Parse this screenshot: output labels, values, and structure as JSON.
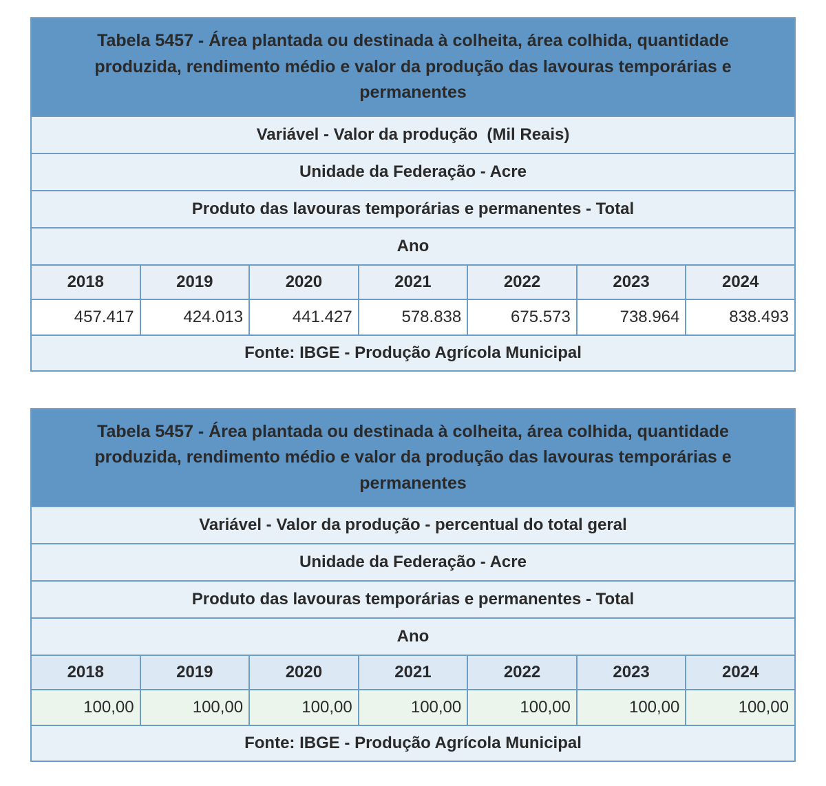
{
  "colors": {
    "title_bg": "#5f96c6",
    "title_text": "#ffffff",
    "band_bg": "#e9f1f8",
    "border": "#6d9cc4",
    "year_bg_table1": "#e8eff6",
    "year_bg_table2": "#dce8f4",
    "value_bg_table1": "#ffffff",
    "value_bg_table2": "#ebf5ec",
    "body_text": "#2a2a2a"
  },
  "tables": [
    {
      "title": "Tabela 5457 - Área plantada ou destinada à colheita, área colhida, quantidade produzida, rendimento médio e valor da produção das lavouras temporárias e permanentes",
      "variable": "Variável - Valor da produção  (Mil Reais)",
      "federation_unit": "Unidade da Federação - Acre",
      "product": "Produto das lavouras temporárias e permanentes - Total",
      "year_label": "Ano",
      "years": [
        "2018",
        "2019",
        "2020",
        "2021",
        "2022",
        "2023",
        "2024"
      ],
      "values": [
        "457.417",
        "424.013",
        "441.427",
        "578.838",
        "675.573",
        "738.964",
        "838.493"
      ],
      "source": "Fonte: IBGE - Produção Agrícola Municipal"
    },
    {
      "title": "Tabela 5457 - Área plantada ou destinada à colheita, área colhida, quantidade produzida, rendimento médio e valor da produção das lavouras temporárias e permanentes",
      "variable": "Variável - Valor da produção - percentual do total geral",
      "federation_unit": "Unidade da Federação - Acre",
      "product": "Produto das lavouras temporárias e permanentes - Total",
      "year_label": "Ano",
      "years": [
        "2018",
        "2019",
        "2020",
        "2021",
        "2022",
        "2023",
        "2024"
      ],
      "values": [
        "100,00",
        "100,00",
        "100,00",
        "100,00",
        "100,00",
        "100,00",
        "100,00"
      ],
      "source": "Fonte: IBGE - Produção Agrícola Municipal"
    }
  ],
  "chart_data": [
    {
      "type": "table",
      "title": "Tabela 5457 - Área plantada ou destinada à colheita, área colhida, quantidade produzida, rendimento médio e valor da produção das lavouras temporárias e permanentes",
      "variable": "Valor da produção (Mil Reais)",
      "federation_unit": "Acre",
      "product": "Produto das lavouras temporárias e permanentes - Total",
      "categories": [
        "2018",
        "2019",
        "2020",
        "2021",
        "2022",
        "2023",
        "2024"
      ],
      "values": [
        457417,
        424013,
        441427,
        578838,
        675573,
        738964,
        838493
      ],
      "source": "Fonte: IBGE - Produção Agrícola Municipal"
    },
    {
      "type": "table",
      "title": "Tabela 5457 - Área plantada ou destinada à colheita, área colhida, quantidade produzida, rendimento médio e valor da produção das lavouras temporárias e permanentes",
      "variable": "Valor da produção - percentual do total geral",
      "federation_unit": "Acre",
      "product": "Produto das lavouras temporárias e permanentes - Total",
      "categories": [
        "2018",
        "2019",
        "2020",
        "2021",
        "2022",
        "2023",
        "2024"
      ],
      "values": [
        100.0,
        100.0,
        100.0,
        100.0,
        100.0,
        100.0,
        100.0
      ],
      "source": "Fonte: IBGE - Produção Agrícola Municipal"
    }
  ]
}
